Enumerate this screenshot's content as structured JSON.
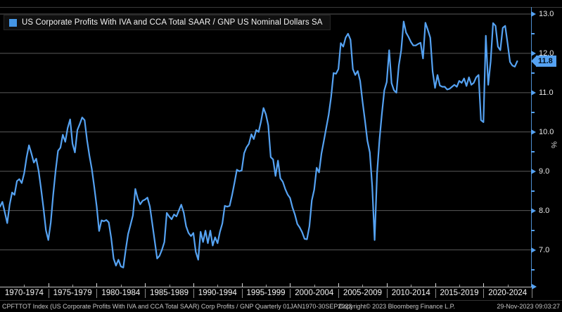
{
  "legend": {
    "label": "US Corporate Profits With IVA and CCA Total SAAR / GNP US Nominal Dollars SA",
    "swatch_color": "#4596E5"
  },
  "chart_data": {
    "type": "line",
    "title": "US Corporate Profits With IVA and CCA Total SAAR / GNP US Nominal Dollars SA",
    "series_name": "CPFTTOT Index",
    "frequency": "Quarterly",
    "x_start_year": 1970.0,
    "x_step_years": 0.25,
    "x_range": [
      1970,
      2025
    ],
    "ylim": [
      6.1,
      13.2
    ],
    "ylabel": "%",
    "grid": true,
    "legend_position": "top-left",
    "line_color": "#55A2F2",
    "grid_color": "#5a5a5a",
    "axis_color": "#4E8FD0",
    "yticks": [
      7.0,
      8.0,
      9.0,
      10.0,
      11.0,
      12.0,
      13.0
    ],
    "ytick_labels": [
      "7.0",
      "8.0",
      "9.0",
      "10.0",
      "11.0",
      "12.0",
      "13.0"
    ],
    "yticks_minor": [
      6.5,
      7.5,
      8.5,
      9.5,
      10.5,
      11.5,
      12.5
    ],
    "xlabels": [
      "1970-1974",
      "1975-1979",
      "1980-1984",
      "1985-1989",
      "1990-1994",
      "1995-1999",
      "2000-2004",
      "2005-2009",
      "2010-2014",
      "2015-2019",
      "2020-2024"
    ],
    "last_value": 11.8,
    "last_value_label": "11.8",
    "values": [
      8.1,
      8.22,
      7.95,
      7.68,
      8.15,
      8.46,
      8.4,
      8.75,
      8.8,
      8.7,
      8.95,
      9.35,
      9.66,
      9.45,
      9.22,
      9.32,
      9.0,
      8.55,
      8.05,
      7.5,
      7.25,
      7.7,
      8.4,
      9.0,
      9.52,
      9.6,
      9.93,
      9.75,
      10.1,
      10.32,
      9.7,
      9.48,
      10.05,
      10.2,
      10.37,
      10.3,
      9.8,
      9.4,
      9.05,
      8.6,
      8.1,
      7.48,
      7.75,
      7.73,
      7.76,
      7.7,
      7.3,
      6.78,
      6.6,
      6.75,
      6.58,
      6.55,
      7.0,
      7.4,
      7.64,
      7.88,
      8.55,
      8.3,
      8.16,
      8.25,
      8.28,
      8.33,
      8.1,
      7.67,
      7.23,
      6.78,
      6.85,
      7.0,
      7.2,
      7.94,
      7.85,
      7.78,
      7.9,
      7.85,
      8.0,
      8.15,
      7.95,
      7.6,
      7.43,
      7.35,
      7.43,
      6.95,
      6.75,
      7.46,
      7.2,
      7.49,
      7.17,
      7.49,
      7.11,
      7.32,
      7.17,
      7.46,
      7.67,
      8.12,
      8.1,
      8.12,
      8.39,
      8.7,
      9.04,
      9.0,
      9.02,
      9.46,
      9.61,
      9.7,
      9.94,
      9.82,
      10.05,
      10.0,
      10.27,
      10.61,
      10.45,
      10.17,
      9.36,
      9.3,
      8.88,
      9.27,
      8.82,
      8.73,
      8.55,
      8.41,
      8.32,
      8.08,
      7.9,
      7.66,
      7.57,
      7.45,
      7.28,
      7.27,
      7.6,
      8.26,
      8.53,
      9.09,
      8.97,
      9.45,
      9.78,
      10.11,
      10.44,
      10.9,
      11.5,
      11.48,
      11.6,
      12.26,
      12.17,
      12.4,
      12.5,
      12.35,
      11.6,
      11.45,
      11.55,
      11.3,
      10.76,
      10.29,
      9.78,
      9.48,
      8.61,
      7.25,
      8.95,
      9.8,
      10.46,
      11.06,
      11.27,
      12.08,
      11.24,
      11.06,
      11.0,
      11.69,
      12.08,
      12.81,
      12.53,
      12.42,
      12.29,
      12.2,
      12.2,
      12.24,
      12.27,
      11.87,
      12.78,
      12.6,
      12.4,
      11.54,
      11.12,
      11.45,
      11.18,
      11.15,
      11.15,
      11.08,
      11.1,
      11.15,
      11.2,
      11.15,
      11.3,
      11.25,
      11.36,
      11.17,
      11.39,
      11.2,
      11.25,
      11.39,
      11.45,
      10.3,
      10.25,
      12.45,
      11.2,
      11.8,
      12.77,
      12.7,
      12.17,
      12.08,
      12.65,
      12.7,
      12.26,
      11.78,
      11.69,
      11.66,
      11.8
    ]
  },
  "footer": {
    "left": "CPFTTOT Index (US Corporate Profits With IVA and CCA Total SAAR) Corp Profits / GNP  Quarterly 01JAN1970-30SEP2023",
    "center": "Copyright© 2023 Bloomberg Finance L.P.",
    "right": "29-Nov-2023 09:03:27"
  }
}
